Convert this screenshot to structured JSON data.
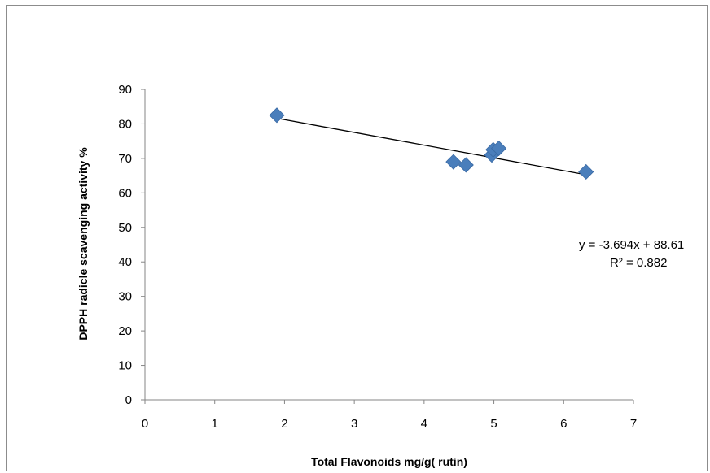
{
  "chart_data": {
    "type": "scatter",
    "xlabel": "Total Flavonoids mg/g( rutin)",
    "ylabel": "DPPH radicle scavenging activity %",
    "xlim": [
      0,
      7
    ],
    "ylim": [
      0,
      90
    ],
    "x_ticks": [
      "0",
      "1",
      "2",
      "3",
      "4",
      "5",
      "6",
      "7"
    ],
    "y_ticks": [
      "0",
      "10",
      "20",
      "30",
      "40",
      "50",
      "60",
      "70",
      "80",
      "90"
    ],
    "grid": false,
    "marker_color": "#4a7ebb",
    "trend_color": "#000000",
    "points": [
      {
        "x": 1.89,
        "y": 82.5
      },
      {
        "x": 4.42,
        "y": 69.0
      },
      {
        "x": 4.6,
        "y": 68.1
      },
      {
        "x": 4.97,
        "y": 71.0
      },
      {
        "x": 4.99,
        "y": 72.5
      },
      {
        "x": 5.07,
        "y": 72.9
      },
      {
        "x": 6.32,
        "y": 66.1
      }
    ],
    "trendline": {
      "slope": -3.694,
      "intercept": 88.61,
      "x_range": [
        1.89,
        6.32
      ],
      "equation": "y = -3.694x + 88.61",
      "r_squared": "R² = 0.882"
    }
  }
}
